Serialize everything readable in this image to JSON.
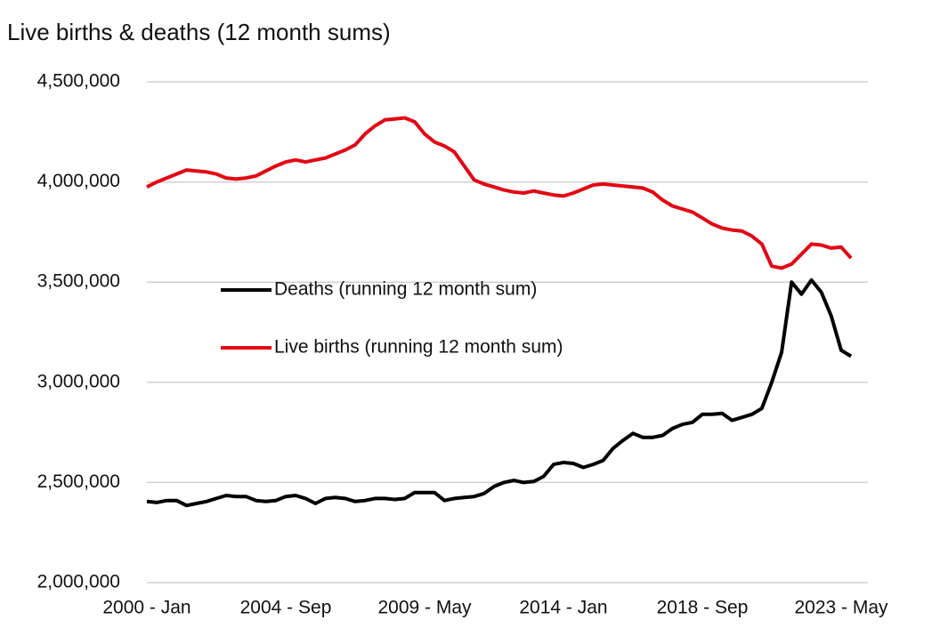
{
  "chart_data": {
    "type": "line",
    "title": "Live births & deaths (12 month sums)",
    "categories": [
      "2000 - Jan",
      null,
      null,
      null,
      null,
      null,
      null,
      null,
      null,
      null,
      null,
      null,
      null,
      null,
      "2004 - Sep",
      null,
      null,
      null,
      null,
      null,
      null,
      null,
      null,
      null,
      null,
      null,
      null,
      null,
      "2009 - May",
      null,
      null,
      null,
      null,
      null,
      null,
      null,
      null,
      null,
      null,
      null,
      null,
      null,
      "2014 - Jan",
      null,
      null,
      null,
      null,
      null,
      null,
      null,
      null,
      null,
      null,
      null,
      null,
      null,
      "2018 - Sep",
      null,
      null,
      null,
      null,
      null,
      null,
      null,
      null,
      null,
      null,
      null,
      null,
      null,
      "2023 - May",
      null
    ],
    "series": [
      {
        "name": "Deaths (running 12 month sum)",
        "color": "#000000",
        "values": [
          2405000,
          2400000,
          2410000,
          2410000,
          2385000,
          2395000,
          2405000,
          2420000,
          2435000,
          2430000,
          2430000,
          2410000,
          2405000,
          2410000,
          2430000,
          2435000,
          2420000,
          2395000,
          2420000,
          2425000,
          2420000,
          2405000,
          2410000,
          2420000,
          2420000,
          2415000,
          2420000,
          2450000,
          2450000,
          2450000,
          2410000,
          2420000,
          2425000,
          2430000,
          2445000,
          2480000,
          2500000,
          2510000,
          2500000,
          2505000,
          2530000,
          2590000,
          2600000,
          2595000,
          2575000,
          2590000,
          2610000,
          2670000,
          2710000,
          2745000,
          2725000,
          2725000,
          2735000,
          2770000,
          2790000,
          2800000,
          2840000,
          2840000,
          2845000,
          2810000,
          2825000,
          2840000,
          2870000,
          3000000,
          3150000,
          3500000,
          3440000,
          3510000,
          3450000,
          3330000,
          3160000,
          3130000
        ]
      },
      {
        "name": "Live births (running 12 month sum)",
        "color": "#e30613",
        "values": [
          3975000,
          4000000,
          4020000,
          4040000,
          4060000,
          4055000,
          4050000,
          4040000,
          4020000,
          4015000,
          4020000,
          4030000,
          4055000,
          4080000,
          4100000,
          4110000,
          4100000,
          4110000,
          4120000,
          4140000,
          4160000,
          4185000,
          4240000,
          4280000,
          4310000,
          4315000,
          4320000,
          4300000,
          4240000,
          4200000,
          4180000,
          4150000,
          4080000,
          4010000,
          3990000,
          3975000,
          3960000,
          3950000,
          3945000,
          3955000,
          3945000,
          3935000,
          3930000,
          3945000,
          3965000,
          3985000,
          3990000,
          3985000,
          3980000,
          3975000,
          3970000,
          3950000,
          3910000,
          3880000,
          3865000,
          3850000,
          3820000,
          3790000,
          3770000,
          3760000,
          3755000,
          3730000,
          3690000,
          3580000,
          3570000,
          3590000,
          3640000,
          3690000,
          3685000,
          3670000,
          3675000,
          3620000
        ]
      }
    ],
    "ylim": [
      2000000,
      4500000
    ],
    "yticks": [
      {
        "value": 2000000,
        "label": "2,000,000"
      },
      {
        "value": 2500000,
        "label": "2,500,000"
      },
      {
        "value": 3000000,
        "label": "3,000,000"
      },
      {
        "value": 3500000,
        "label": "3,500,000"
      },
      {
        "value": 4000000,
        "label": "4,000,000"
      },
      {
        "value": 4500000,
        "label": "4,500,000"
      }
    ],
    "grid": true
  }
}
